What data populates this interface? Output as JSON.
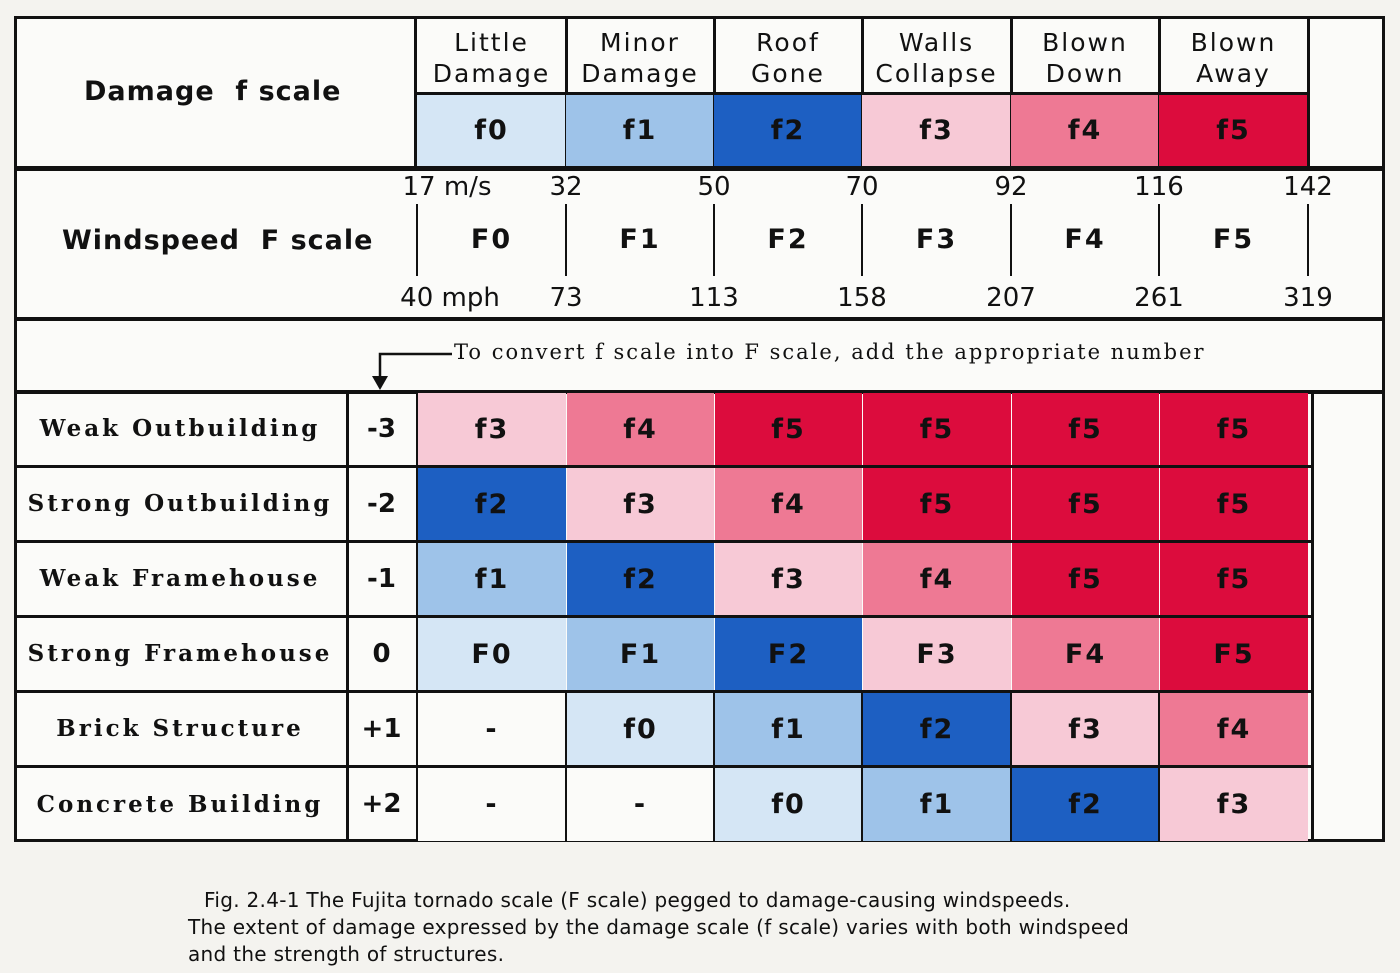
{
  "damage_f_scale": {
    "label": "Damage  f scale",
    "columns": [
      {
        "line1": "Little",
        "line2": "Damage",
        "code": "f0",
        "color": "#d5e6f5"
      },
      {
        "line1": "Minor",
        "line2": "Damage",
        "code": "f1",
        "color": "#9ec3e9"
      },
      {
        "line1": "Roof",
        "line2": "Gone",
        "code": "f2",
        "color": "#1d5fc2"
      },
      {
        "line1": "Walls",
        "line2": "Collapse",
        "code": "f3",
        "color": "#f7c9d6"
      },
      {
        "line1": "Blown",
        "line2": "Down",
        "code": "f4",
        "color": "#ee7994"
      },
      {
        "line1": "Blown",
        "line2": "Away",
        "code": "f5",
        "color": "#dc0c3d"
      }
    ]
  },
  "windspeed_f_scale": {
    "label": "Windspeed  F scale",
    "categories": [
      "F0",
      "F1",
      "F2",
      "F3",
      "F4",
      "F5"
    ],
    "ms_values": [
      "17 m/s",
      "32",
      "50",
      "70",
      "92",
      "116",
      "142"
    ],
    "mph_values": [
      "40 mph",
      "73",
      "113",
      "158",
      "207",
      "261",
      "319"
    ]
  },
  "conversion_note": "To convert f scale into F scale, add the appropriate number",
  "structures": [
    {
      "name": "Weak Outbuilding",
      "adjustment": "-3",
      "cells": [
        "f3",
        "f4",
        "f5",
        "f5",
        "f5",
        "f5"
      ]
    },
    {
      "name": "Strong Outbuilding",
      "adjustment": "-2",
      "cells": [
        "f2",
        "f3",
        "f4",
        "f5",
        "f5",
        "f5"
      ]
    },
    {
      "name": "Weak Framehouse",
      "adjustment": "-1",
      "cells": [
        "f1",
        "f2",
        "f3",
        "f4",
        "f5",
        "f5"
      ]
    },
    {
      "name": "Strong Framehouse",
      "adjustment": "0",
      "cells": [
        "F0",
        "F1",
        "F2",
        "F3",
        "F4",
        "F5"
      ]
    },
    {
      "name": "Brick Structure",
      "adjustment": "+1",
      "cells": [
        "-",
        "f0",
        "f1",
        "f2",
        "f3",
        "f4"
      ]
    },
    {
      "name": "Concrete Building",
      "adjustment": "+2",
      "cells": [
        "-",
        "-",
        "f0",
        "f1",
        "f2",
        "f3"
      ]
    }
  ],
  "colors": {
    "0": "#d5e6f5",
    "1": "#9ec3e9",
    "2": "#1d5fc2",
    "3": "#f7c9d6",
    "4": "#ee7994",
    "5": "#dc0c3d",
    "-": "#fbfbf9"
  },
  "caption": {
    "line1": "Fig. 2.4-1  The Fujita tornado scale (F scale) pegged to damage-causing windspeeds.",
    "line2": "The extent of damage expressed by the damage scale (f scale) varies with both windspeed",
    "line3": "and the strength of structures."
  }
}
